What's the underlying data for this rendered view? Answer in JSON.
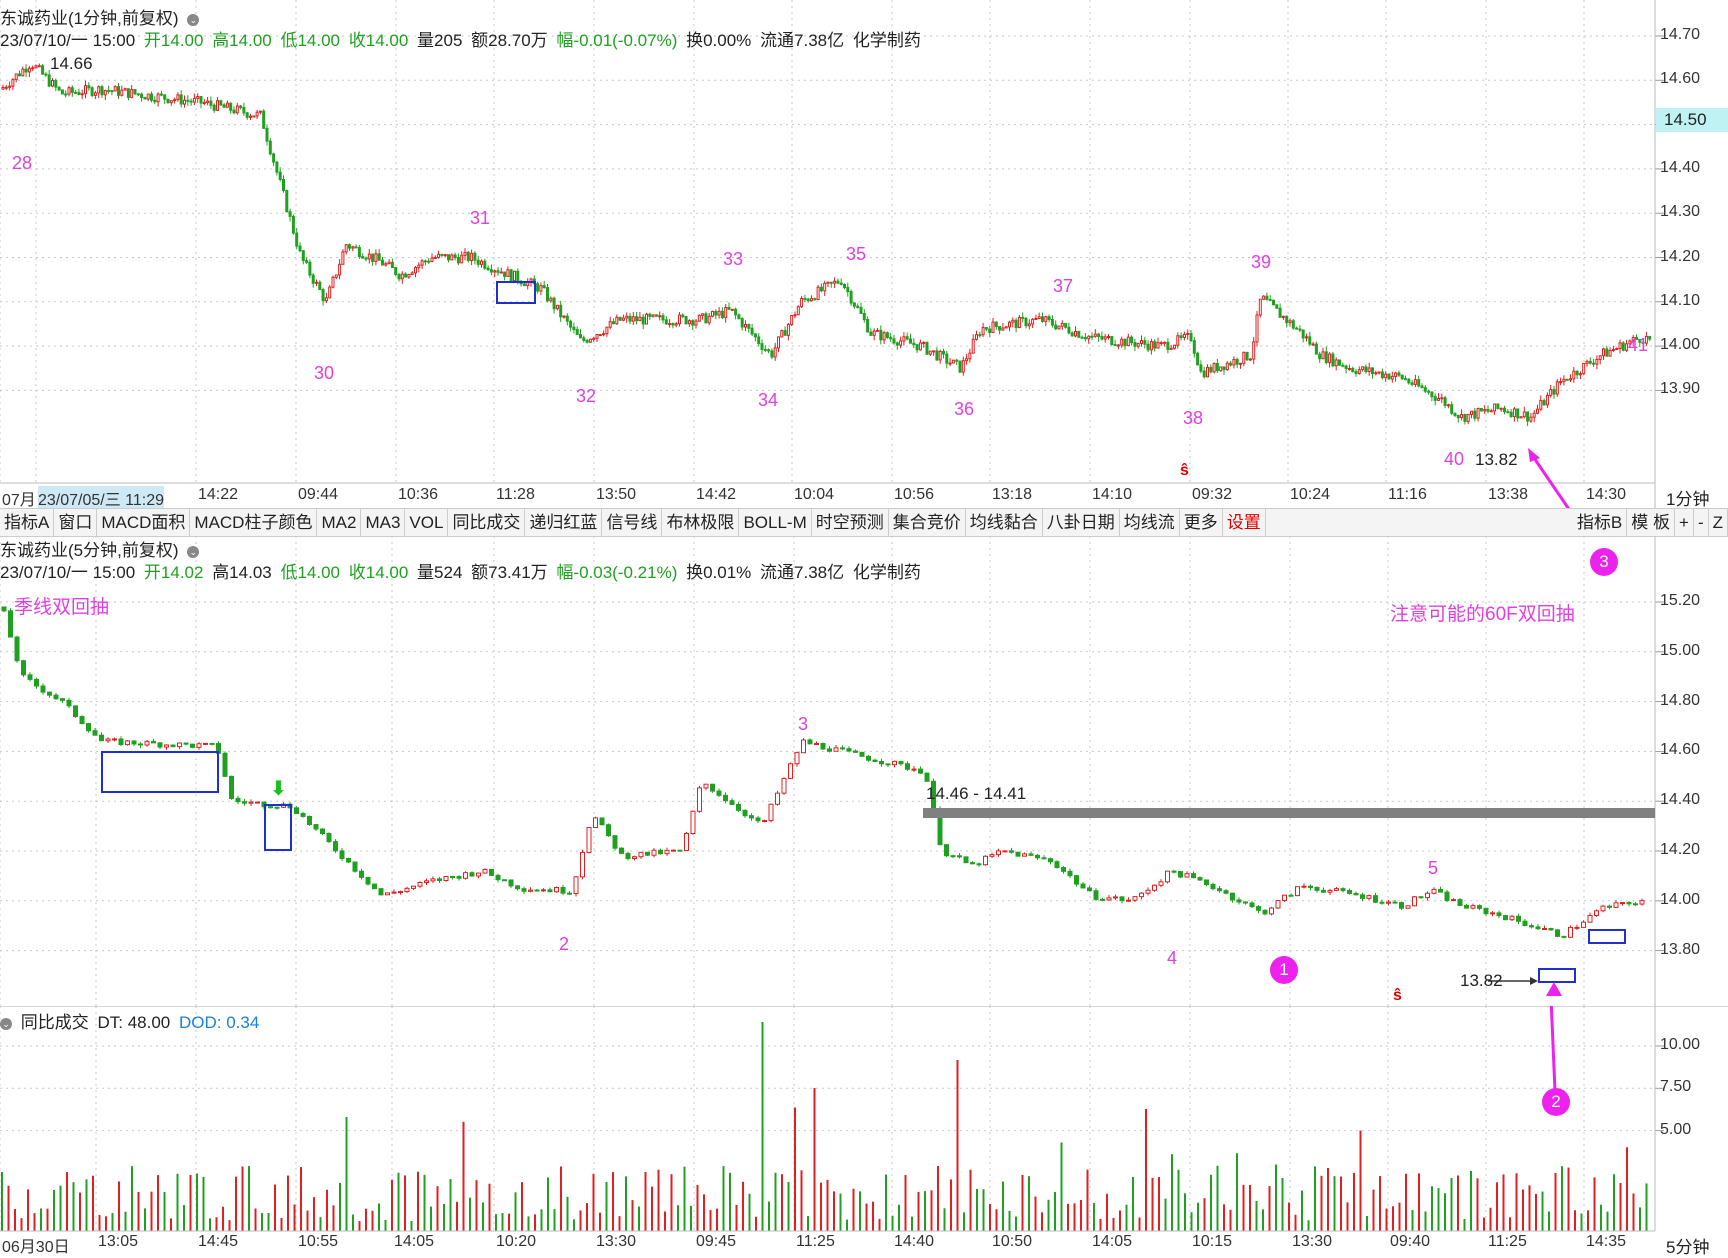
{
  "top": {
    "title": "东诚药业(1分钟,前复权)",
    "info": {
      "date": "23/07/10/一 15:00",
      "open": "开14.00",
      "high": "高14.00",
      "low": "低14.00",
      "close": "收14.00",
      "vol": "量205",
      "amt": "额28.70万",
      "chg": "幅-0.01(-0.07%)",
      "turn": "换0.00%",
      "float": "流通7.38亿",
      "sector": "化学制药"
    },
    "y_ticks": [
      "14.70",
      "14.60",
      "14.50",
      "14.40",
      "14.30",
      "14.20",
      "14.10",
      "14.00",
      "13.90"
    ],
    "current_price": "14.50",
    "high_label": "14.66",
    "low_label": "13.82",
    "x_ticks": [
      "07月",
      "23/07/05/三 11:29",
      "14:22",
      "09:44",
      "10:36",
      "11:28",
      "13:50",
      "14:42",
      "10:04",
      "10:56",
      "13:18",
      "14:10",
      "09:32",
      "10:24",
      "11:16",
      "13:38",
      "14:30"
    ],
    "period": "1分钟",
    "markers": [
      "28",
      "30",
      "31",
      "32",
      "33",
      "34",
      "35",
      "36",
      "37",
      "38",
      "39",
      "40",
      "41"
    ]
  },
  "toolbar": {
    "items": [
      "指标A",
      "窗口",
      "MACD面积",
      "MACD柱子颜色",
      "MA2",
      "MA3",
      "VOL",
      "同比成交",
      "递归红蓝",
      "信号线",
      "布林极限",
      "BOLL-M",
      "时空预测",
      "集合竞价",
      "均线黏合",
      "八卦日期",
      "均线流",
      "更多",
      "设置"
    ],
    "right": [
      "指标B",
      "模 板",
      "+",
      "-",
      "Z"
    ]
  },
  "mid": {
    "title": "东诚药业(5分钟,前复权)",
    "info": {
      "date": "23/07/10/一 15:00",
      "open": "开14.02",
      "high": "高14.03",
      "low": "低14.00",
      "close": "收14.00",
      "vol": "量524",
      "amt": "额73.41万",
      "chg": "幅-0.03(-0.21%)",
      "turn": "换0.01%",
      "float": "流通7.38亿",
      "sector": "化学制药"
    },
    "y_ticks": [
      "15.20",
      "15.00",
      "14.80",
      "14.60",
      "14.40",
      "14.20",
      "14.00",
      "13.80"
    ],
    "note_left": "季线双回抽",
    "note_right": "注意可能的60F双回抽",
    "zone_label": "14.46 - 14.41",
    "low_label": "13.82",
    "markers": [
      "2",
      "3",
      "4",
      "5"
    ],
    "badges": [
      "1",
      "2",
      "3"
    ]
  },
  "vol": {
    "title": "同比成交",
    "dt": "DT: 48.00",
    "dod": "DOD: 0.34",
    "y_ticks": [
      "10.00",
      "7.50",
      "5.00"
    ],
    "x_ticks": [
      "06月30日",
      "13:05",
      "14:45",
      "10:55",
      "14:05",
      "10:20",
      "13:30",
      "09:45",
      "11:25",
      "14:40",
      "10:50",
      "14:05",
      "10:15",
      "13:30",
      "09:40",
      "11:25",
      "14:35"
    ],
    "period": "5分钟"
  },
  "colors": {
    "up": "#e02020",
    "down": "#20a020",
    "marker": "#e040e0",
    "box": "#2030d0"
  }
}
